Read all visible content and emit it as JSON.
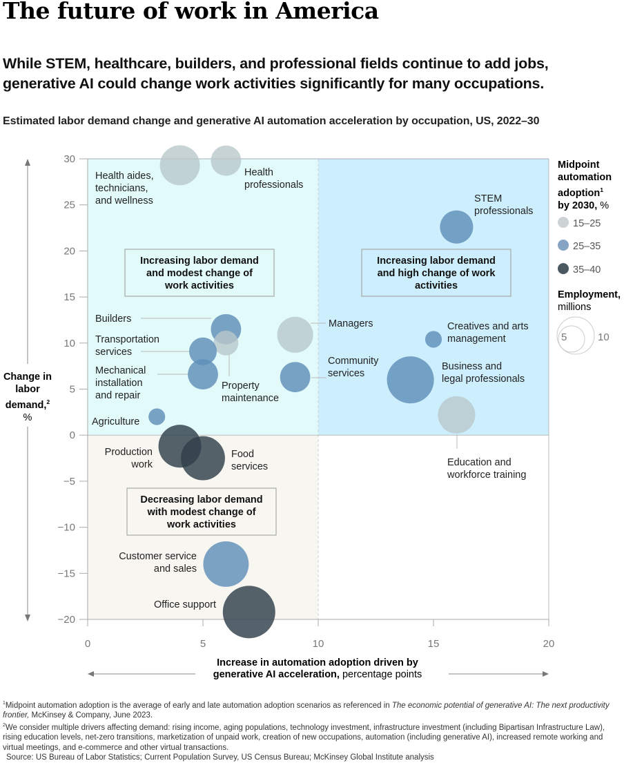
{
  "title": "The future of work in America",
  "subtitle_line1": "While STEM, healthcare, builders, and professional fields continue to add jobs,",
  "subtitle_line2": "generative AI could change work activities significantly for many occupations.",
  "chart_title": "Estimated labor demand change and generative AI automation acceleration by occupation, US, 2022–30",
  "colors": {
    "quadrant_top_left": "#e2fafa",
    "quadrant_top_right": "#cdeefc",
    "quadrant_bottom_left": "#f8f6f1",
    "low_adoption": "#c9cfd2",
    "mid_adoption": "#6f9bc2",
    "high_adoption": "#3d4e5a"
  },
  "y_axis": {
    "label_bold": "Change in labor demand,",
    "label_sup": "2",
    "label_unit": "%"
  },
  "x_axis": {
    "label_line1": "Increase in automation adoption driven by",
    "label_bold2": "generative AI acceleration,",
    "label_unit": " percentage points"
  },
  "legend": {
    "color_title_lines": [
      "Midpoint",
      "automation",
      "adoption"
    ],
    "color_title_sup": "1",
    "color_title_last_bold": "by 2030,",
    "color_title_last_unit": " %",
    "items": [
      {
        "label": "15–25",
        "group": "low"
      },
      {
        "label": "25–35",
        "group": "mid"
      },
      {
        "label": "35–40",
        "group": "high"
      }
    ],
    "size_title": "Employment,",
    "size_unit": "millions",
    "size_values": [
      5,
      10
    ]
  },
  "chart_data": {
    "type": "scatter",
    "subtype": "bubble",
    "title": "Estimated labor demand change and generative AI automation acceleration by occupation, US, 2022–30",
    "xlabel": "Increase in automation adoption driven by generative AI acceleration, percentage points",
    "ylabel": "Change in labor demand, %",
    "xlim": [
      0,
      20
    ],
    "ylim": [
      -20,
      30
    ],
    "xticks": [
      0,
      5,
      10,
      15,
      20
    ],
    "yticks": [
      30,
      25,
      20,
      15,
      10,
      5,
      0,
      -5,
      -10,
      -15,
      -20
    ],
    "grid": false,
    "legend_position": "right",
    "size_encoding": "Employment, millions",
    "color_encoding": "Midpoint automation adoption by 2030, %",
    "quadrants": [
      {
        "label": "Increasing labor demand and modest change of work activities",
        "lines": [
          "Increasing labor demand",
          "and modest change of",
          "work activities"
        ]
      },
      {
        "label": "Increasing labor demand and high change of work activities",
        "lines": [
          "Increasing labor demand",
          "and high change of work",
          "activities"
        ]
      },
      {
        "label": "Decreasing labor demand with modest change of work activities",
        "lines": [
          "Decreasing labor demand",
          "with modest change of",
          "work activities"
        ]
      }
    ],
    "points": [
      {
        "name": "Health aides, technicians, and wellness",
        "lines": [
          "Health aides,",
          "technicians,",
          "and wellness"
        ],
        "x": 4.0,
        "y": 29.3,
        "employment": 11.5,
        "adoption": "15–25"
      },
      {
        "name": "Health professionals",
        "lines": [
          "Health",
          "professionals"
        ],
        "x": 6.0,
        "y": 29.8,
        "employment": 6.6,
        "adoption": "15–25"
      },
      {
        "name": "STEM professionals",
        "lines": [
          "STEM",
          "professionals"
        ],
        "x": 16.0,
        "y": 22.6,
        "employment": 7.9,
        "adoption": "25–35"
      },
      {
        "name": "Builders",
        "lines": [
          "Builders"
        ],
        "x": 6.0,
        "y": 11.5,
        "employment": 6.6,
        "adoption": "25–35"
      },
      {
        "name": "Property maintenance",
        "lines": [
          "Property",
          "maintenance"
        ],
        "x": 6.0,
        "y": 10.0,
        "employment": 4.4,
        "adoption": "15–25"
      },
      {
        "name": "Transportation services",
        "lines": [
          "Transportation",
          "services"
        ],
        "x": 5.0,
        "y": 9.1,
        "employment": 5.5,
        "adoption": "25–35"
      },
      {
        "name": "Mechanical installation and repair",
        "lines": [
          "Mechanical",
          "installation",
          "and repair"
        ],
        "x": 5.0,
        "y": 6.6,
        "employment": 6.6,
        "adoption": "25–35"
      },
      {
        "name": "Managers",
        "lines": [
          "Managers"
        ],
        "x": 9.0,
        "y": 10.9,
        "employment": 9.3,
        "adoption": "15–25"
      },
      {
        "name": "Community services",
        "lines": [
          "Community",
          "services"
        ],
        "x": 9.0,
        "y": 6.3,
        "employment": 6.6,
        "adoption": "25–35"
      },
      {
        "name": "Creatives and arts management",
        "lines": [
          "Creatives and arts",
          "management"
        ],
        "x": 15.0,
        "y": 10.4,
        "employment": 2.0,
        "adoption": "25–35"
      },
      {
        "name": "Business and legal professionals",
        "lines": [
          "Business and",
          "legal professionals"
        ],
        "x": 14.0,
        "y": 6.0,
        "employment": 15.9,
        "adoption": "25–35"
      },
      {
        "name": "Education and workforce training",
        "lines": [
          "Education and",
          "workforce training"
        ],
        "x": 16.0,
        "y": 2.2,
        "employment": 10.0,
        "adoption": "15–25"
      },
      {
        "name": "Agriculture",
        "lines": [
          "Agriculture"
        ],
        "x": 3.0,
        "y": 2.0,
        "employment": 2.0,
        "adoption": "25–35"
      },
      {
        "name": "Production work",
        "lines": [
          "Production",
          "work"
        ],
        "x": 4.0,
        "y": -1.2,
        "employment": 13.2,
        "adoption": "35–40"
      },
      {
        "name": "Food services",
        "lines": [
          "Food",
          "services"
        ],
        "x": 5.0,
        "y": -2.5,
        "employment": 14.0,
        "adoption": "35–40"
      },
      {
        "name": "Customer service and sales",
        "lines": [
          "Customer service",
          "and sales"
        ],
        "x": 6.0,
        "y": -14.0,
        "employment": 14.9,
        "adoption": "25–35"
      },
      {
        "name": "Office support",
        "lines": [
          "Office support"
        ],
        "x": 7.0,
        "y": -19.2,
        "employment": 19.8,
        "adoption": "35–40"
      }
    ]
  },
  "footnotes": {
    "fn1_sup": "1",
    "fn1_text": "Midpoint automation adoption is the average of early and late automation adoption scenarios as referenced in ",
    "fn1_italic": "The economic potential of generative AI: The next productivity frontier,",
    "fn1_tail": " McKinsey & Company, June 2023.",
    "fn2_sup": "2",
    "fn2_text": "We consider multiple drivers affecting demand: rising income, aging populations, technology investment, infrastructure investment (including Bipartisan Infrastructure Law), rising education levels, net-zero transitions, marketization of unpaid work, creation of new occupations, automation (including generative AI), increased remote working and virtual meetings, and e-commerce and other virtual transactions.",
    "source": "Source: US Bureau of Labor Statistics; Current Population Survey, US Census Bureau; McKinsey Global Institute analysis"
  }
}
